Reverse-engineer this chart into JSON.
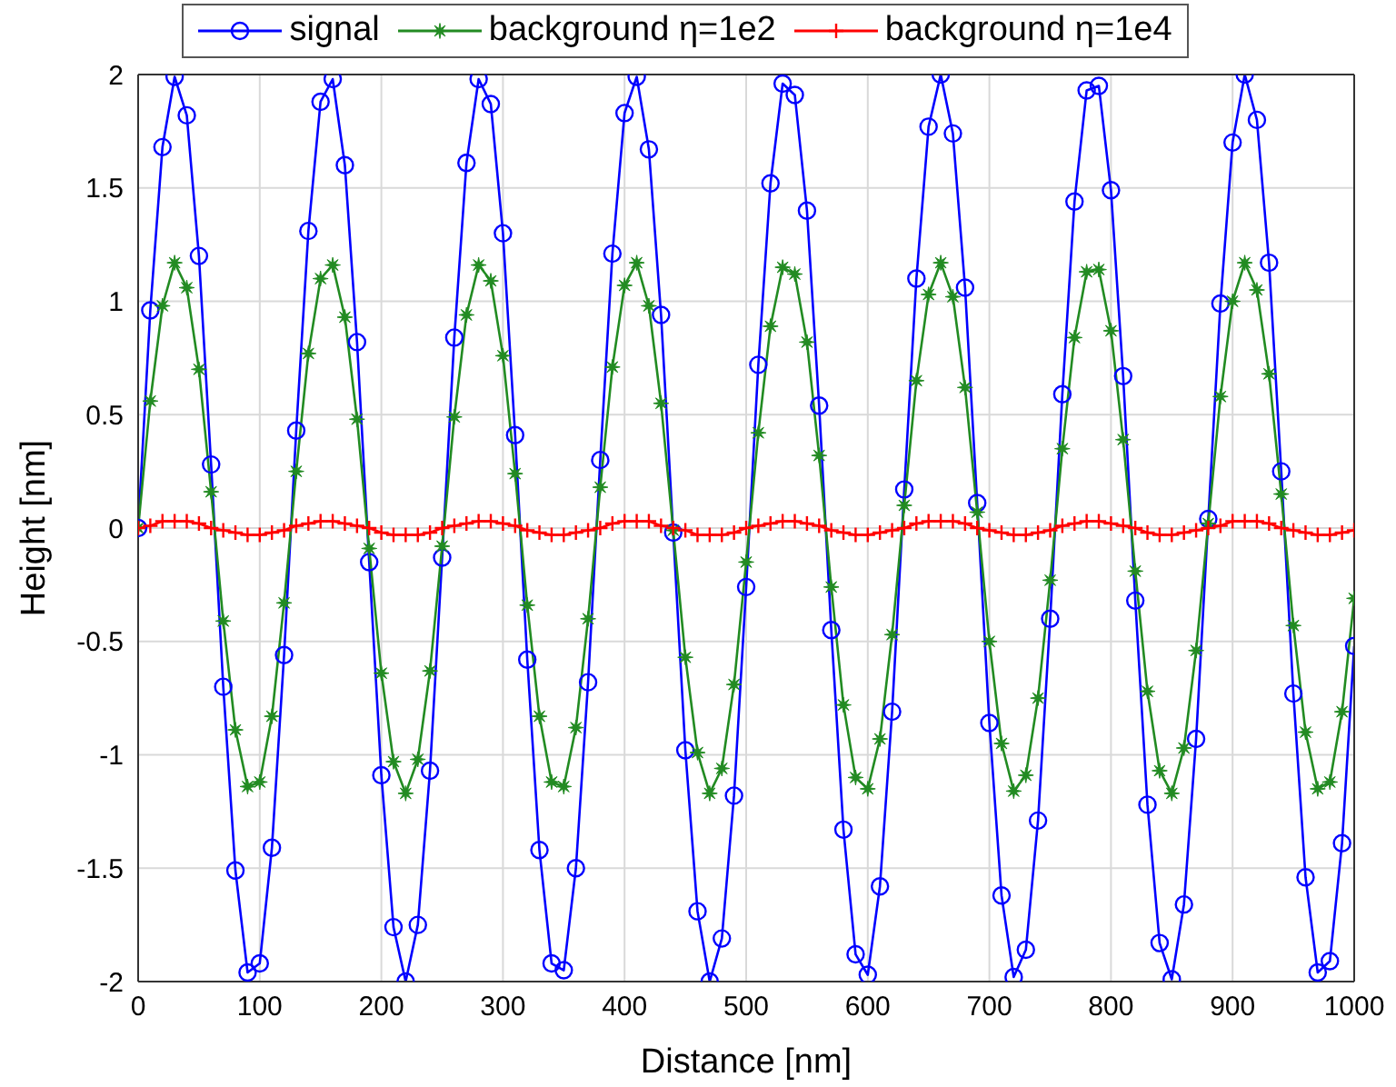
{
  "chart_data": {
    "type": "line",
    "xlabel": "Distance [nm]",
    "ylabel": "Height [nm]",
    "x": [
      0,
      10,
      20,
      30,
      40,
      50,
      60,
      70,
      80,
      90,
      100,
      110,
      120,
      130,
      140,
      150,
      160,
      170,
      180,
      190,
      200,
      210,
      220,
      230,
      240,
      250,
      260,
      270,
      280,
      290,
      300,
      310,
      320,
      330,
      340,
      350,
      360,
      370,
      380,
      390,
      400,
      410,
      420,
      430,
      440,
      450,
      460,
      470,
      480,
      490,
      500,
      510,
      520,
      530,
      540,
      550,
      560,
      570,
      580,
      590,
      600,
      610,
      620,
      630,
      640,
      650,
      660,
      670,
      680,
      690,
      700,
      710,
      720,
      730,
      740,
      750,
      760,
      770,
      780,
      790,
      800,
      810,
      820,
      830,
      840,
      850,
      860,
      870,
      880,
      890,
      900,
      910,
      920,
      930,
      940,
      950,
      960,
      970,
      980,
      990,
      1000
    ],
    "series": [
      {
        "name": "signal",
        "color": "#0000ff",
        "marker": "circle",
        "values": [
          0,
          0.96,
          1.68,
          1.99,
          1.82,
          1.2,
          0.28,
          -0.7,
          -1.51,
          -1.96,
          -1.92,
          -1.41,
          -0.56,
          0.43,
          1.31,
          1.88,
          1.98,
          1.6,
          0.82,
          -0.15,
          -1.09,
          -1.76,
          -2,
          -1.75,
          -1.07,
          -0.13,
          0.84,
          1.61,
          1.98,
          1.87,
          1.3,
          0.41,
          -0.58,
          -1.42,
          -1.92,
          -1.95,
          -1.5,
          -0.68,
          0.3,
          1.21,
          1.83,
          1.99,
          1.67,
          0.94,
          -0.02,
          -0.98,
          -1.69,
          -2,
          -1.81,
          -1.18,
          -0.26,
          0.72,
          1.52,
          1.96,
          1.91,
          1.4,
          0.54,
          -0.45,
          -1.33,
          -1.88,
          -1.97,
          -1.58,
          -0.81,
          0.17,
          1.1,
          1.77,
          2,
          1.74,
          1.06,
          0.11,
          -0.86,
          -1.62,
          -1.98,
          -1.86,
          -1.29,
          -0.4,
          0.59,
          1.44,
          1.93,
          1.95,
          1.49,
          0.67,
          -0.32,
          -1.22,
          -1.83,
          -1.99,
          -1.66,
          -0.93,
          0.04,
          0.99,
          1.7,
          2,
          1.8,
          1.17,
          0.25,
          -0.73,
          -1.54,
          -1.96,
          -1.91,
          -1.39,
          -0.52
        ]
      },
      {
        "name": "background η=1e2",
        "color": "#228b22",
        "marker": "star",
        "values": [
          0,
          0.56,
          0.98,
          1.17,
          1.06,
          0.7,
          0.16,
          -0.41,
          -0.89,
          -1.14,
          -1.12,
          -0.83,
          -0.33,
          0.25,
          0.77,
          1.1,
          1.16,
          0.93,
          0.48,
          -0.09,
          -0.64,
          -1.03,
          -1.17,
          -1.02,
          -0.63,
          -0.08,
          0.49,
          0.94,
          1.16,
          1.09,
          0.76,
          0.24,
          -0.34,
          -0.83,
          -1.12,
          -1.14,
          -0.88,
          -0.4,
          0.18,
          0.71,
          1.07,
          1.17,
          0.98,
          0.55,
          -0.01,
          -0.57,
          -0.99,
          -1.17,
          -1.06,
          -0.69,
          -0.15,
          0.42,
          0.89,
          1.15,
          1.12,
          0.82,
          0.32,
          -0.26,
          -0.78,
          -1.1,
          -1.15,
          -0.93,
          -0.47,
          0.1,
          0.65,
          1.03,
          1.17,
          1.02,
          0.62,
          0.07,
          -0.5,
          -0.95,
          -1.16,
          -1.09,
          -0.75,
          -0.23,
          0.35,
          0.84,
          1.13,
          1.14,
          0.87,
          0.39,
          -0.19,
          -0.72,
          -1.07,
          -1.17,
          -0.97,
          -0.54,
          0.02,
          0.58,
          1,
          1.17,
          1.05,
          0.68,
          0.15,
          -0.43,
          -0.9,
          -1.15,
          -1.12,
          -0.81,
          -0.31
        ]
      },
      {
        "name": "background η=1e4",
        "color": "#ff0000",
        "marker": "cross",
        "values": [
          0,
          0.01,
          0.03,
          0.03,
          0.03,
          0.02,
          0,
          -0.01,
          -0.02,
          -0.03,
          -0.03,
          -0.02,
          -0.01,
          0.01,
          0.02,
          0.03,
          0.03,
          0.02,
          0.01,
          0,
          -0.02,
          -0.03,
          -0.03,
          -0.03,
          -0.02,
          0,
          0.01,
          0.02,
          0.03,
          0.03,
          0.02,
          0.01,
          -0.01,
          -0.02,
          -0.03,
          -0.03,
          -0.02,
          -0.01,
          0,
          0.02,
          0.03,
          0.03,
          0.03,
          0.01,
          0,
          -0.01,
          -0.03,
          -0.03,
          -0.03,
          -0.02,
          0,
          0.01,
          0.02,
          0.03,
          0.03,
          0.02,
          0.01,
          -0.01,
          -0.02,
          -0.03,
          -0.03,
          -0.02,
          -0.01,
          0,
          0.02,
          0.03,
          0.03,
          0.03,
          0.02,
          0,
          -0.01,
          -0.02,
          -0.03,
          -0.03,
          -0.02,
          -0.01,
          0.01,
          0.02,
          0.03,
          0.03,
          0.02,
          0.01,
          0,
          -0.02,
          -0.03,
          -0.03,
          -0.02,
          -0.01,
          0,
          0.01,
          0.03,
          0.03,
          0.03,
          0.02,
          0,
          -0.01,
          -0.02,
          -0.03,
          -0.03,
          -0.02,
          -0.01
        ]
      }
    ],
    "xlim": [
      0,
      1000
    ],
    "xticks": [
      0,
      100,
      200,
      300,
      400,
      500,
      600,
      700,
      800,
      900,
      1000
    ],
    "ylim": [
      -2,
      2
    ],
    "yticks": [
      -2,
      -1.5,
      -1,
      -0.5,
      0,
      0.5,
      1,
      1.5,
      2
    ],
    "grid": true,
    "legend": "top",
    "line_style": "solid"
  }
}
